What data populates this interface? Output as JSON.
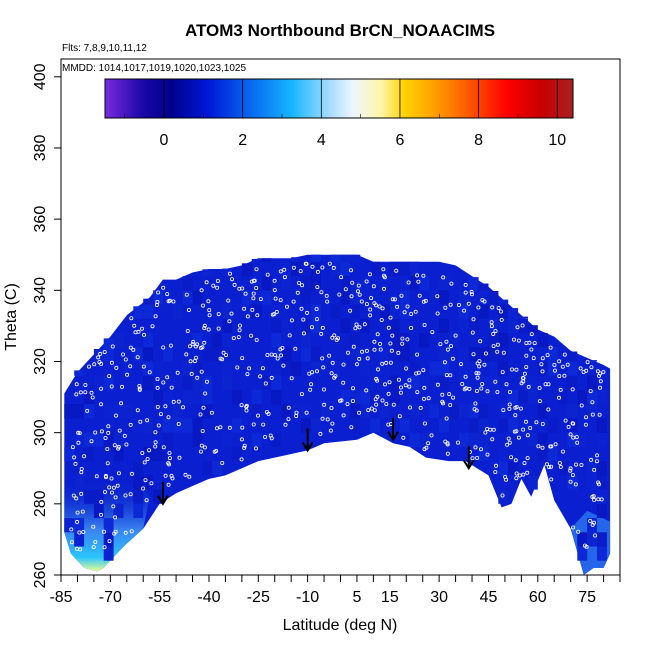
{
  "chart_data": {
    "type": "heatmap",
    "title": "ATOM3 Northbound BrCN_NOAACIMS",
    "notes": {
      "flights": "Flts: 7,8,9,10,11,12",
      "dates": "MMDD: 1014,1017,1019,1020,1023,1025"
    },
    "xlabel": "Latitude (deg N)",
    "ylabel": "Theta (C)",
    "xlim": [
      -85,
      85
    ],
    "ylim": [
      260,
      405
    ],
    "x_tick_labels": [
      "-85",
      "-70",
      "-55",
      "-40",
      "-25",
      "-10",
      "5",
      "15",
      "30",
      "45",
      "60",
      "75"
    ],
    "y_tick_labels": [
      "260",
      "280",
      "300",
      "320",
      "340",
      "360",
      "380",
      "400"
    ],
    "colorbar": {
      "range": [
        -1.5,
        10.4
      ],
      "tick_labels": [
        "0",
        "2",
        "4",
        "6",
        "8",
        "10"
      ]
    },
    "field": {
      "upper_boundary": [
        [
          -84,
          311
        ],
        [
          -80,
          317
        ],
        [
          -75,
          322
        ],
        [
          -70,
          327
        ],
        [
          -65,
          333
        ],
        [
          -58,
          338
        ],
        [
          -54,
          343
        ],
        [
          -50,
          343
        ],
        [
          -45,
          345
        ],
        [
          -40,
          346
        ],
        [
          -35,
          346
        ],
        [
          -30,
          347
        ],
        [
          -25,
          349
        ],
        [
          -15,
          349
        ],
        [
          -10,
          350
        ],
        [
          -5,
          350
        ],
        [
          0,
          350
        ],
        [
          5,
          350
        ],
        [
          10,
          348
        ],
        [
          20,
          348
        ],
        [
          30,
          348
        ],
        [
          35,
          347
        ],
        [
          40,
          344
        ],
        [
          45,
          341
        ],
        [
          50,
          337
        ],
        [
          55,
          333
        ],
        [
          60,
          329
        ],
        [
          65,
          327
        ],
        [
          70,
          323
        ],
        [
          75,
          321
        ],
        [
          80,
          319
        ],
        [
          82,
          318
        ]
      ],
      "lower_boundary": [
        [
          82,
          266
        ],
        [
          80,
          262
        ],
        [
          77,
          262
        ],
        [
          74,
          260
        ],
        [
          70,
          273
        ],
        [
          65,
          281
        ],
        [
          62,
          291
        ],
        [
          58,
          282
        ],
        [
          55,
          287
        ],
        [
          52,
          280
        ],
        [
          49,
          279
        ],
        [
          45,
          288
        ],
        [
          38,
          292
        ],
        [
          33,
          292
        ],
        [
          26,
          293
        ],
        [
          21,
          296
        ],
        [
          16,
          297
        ],
        [
          10,
          300
        ],
        [
          5,
          298
        ],
        [
          -5,
          297
        ],
        [
          -10,
          295
        ],
        [
          -15,
          294
        ],
        [
          -20,
          293
        ],
        [
          -25,
          292
        ],
        [
          -30,
          290
        ],
        [
          -35,
          288
        ],
        [
          -40,
          287
        ],
        [
          -45,
          285
        ],
        [
          -50,
          283
        ],
        [
          -55,
          280
        ],
        [
          -60,
          273
        ],
        [
          -66,
          268
        ],
        [
          -72,
          262
        ],
        [
          -74,
          261
        ],
        [
          -78,
          262
        ],
        [
          -82,
          266
        ],
        [
          -84,
          272
        ]
      ]
    },
    "arrow_latitudes": [
      -54,
      -10,
      16,
      39
    ],
    "arrow_tip_theta": [
      280,
      295,
      298,
      290
    ]
  }
}
